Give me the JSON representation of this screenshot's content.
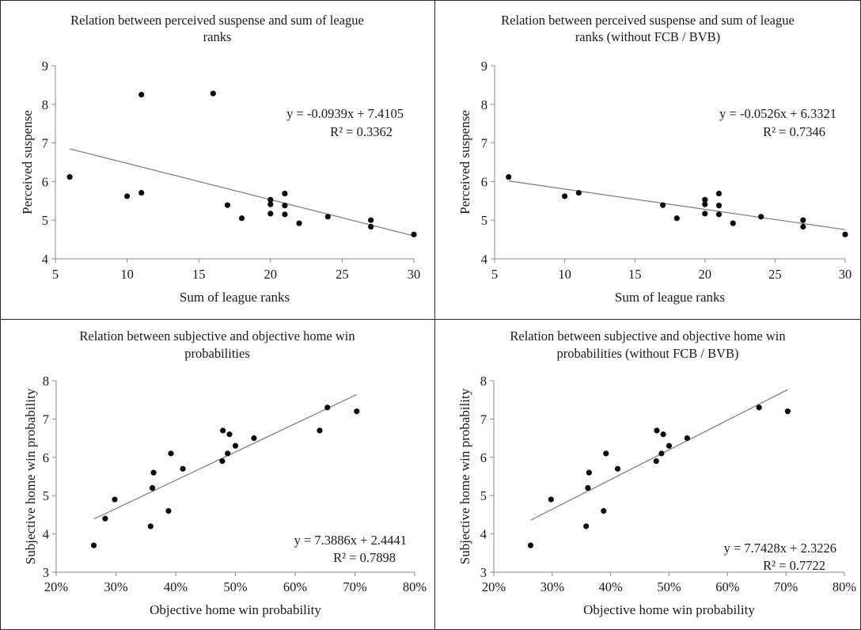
{
  "chart_data": [
    {
      "type": "scatter",
      "title_lines": [
        "Relation between perceived suspense and sum of league",
        "ranks"
      ],
      "xlabel": "Sum of league ranks",
      "ylabel": "Perceived suspense",
      "xlim": [
        5,
        30
      ],
      "ylim": [
        4,
        9
      ],
      "xticks": [
        5,
        10,
        15,
        20,
        25,
        30
      ],
      "yticks": [
        4,
        5,
        6,
        7,
        8,
        9
      ],
      "xtick_labels": [
        "5",
        "10",
        "15",
        "20",
        "25",
        "30"
      ],
      "ytick_labels": [
        "4",
        "5",
        "6",
        "7",
        "8",
        "9"
      ],
      "points": [
        {
          "x": 6,
          "y": 6.12
        },
        {
          "x": 10,
          "y": 5.62
        },
        {
          "x": 11,
          "y": 5.71
        },
        {
          "x": 11,
          "y": 8.25
        },
        {
          "x": 16,
          "y": 8.28
        },
        {
          "x": 17,
          "y": 5.39
        },
        {
          "x": 18,
          "y": 5.05
        },
        {
          "x": 20,
          "y": 5.53
        },
        {
          "x": 20,
          "y": 5.41
        },
        {
          "x": 20,
          "y": 5.17
        },
        {
          "x": 21,
          "y": 5.69
        },
        {
          "x": 21,
          "y": 5.38
        },
        {
          "x": 21,
          "y": 5.15
        },
        {
          "x": 22,
          "y": 4.92
        },
        {
          "x": 24,
          "y": 5.09
        },
        {
          "x": 27,
          "y": 5.0
        },
        {
          "x": 27,
          "y": 4.83
        },
        {
          "x": 30,
          "y": 4.63
        }
      ],
      "trendline": {
        "slope": -0.0939,
        "intercept": 7.4105,
        "x_range": [
          6,
          30
        ]
      },
      "equation": "y = -0.0939x + 7.4105",
      "r2": "R² = 0.3362"
    },
    {
      "type": "scatter",
      "title_lines": [
        "Relation between perceived suspense and sum of league",
        "ranks  (without FCB / BVB)"
      ],
      "xlabel": "Sum of league ranks",
      "ylabel": "Perceived suspense",
      "xlim": [
        5,
        30
      ],
      "ylim": [
        4,
        9
      ],
      "xticks": [
        5,
        10,
        15,
        20,
        25,
        30
      ],
      "yticks": [
        4,
        5,
        6,
        7,
        8,
        9
      ],
      "xtick_labels": [
        "5",
        "10",
        "15",
        "20",
        "25",
        "30"
      ],
      "ytick_labels": [
        "4",
        "5",
        "6",
        "7",
        "8",
        "9"
      ],
      "points": [
        {
          "x": 6,
          "y": 6.12
        },
        {
          "x": 10,
          "y": 5.62
        },
        {
          "x": 11,
          "y": 5.71
        },
        {
          "x": 17,
          "y": 5.39
        },
        {
          "x": 18,
          "y": 5.05
        },
        {
          "x": 20,
          "y": 5.53
        },
        {
          "x": 20,
          "y": 5.41
        },
        {
          "x": 20,
          "y": 5.17
        },
        {
          "x": 21,
          "y": 5.69
        },
        {
          "x": 21,
          "y": 5.38
        },
        {
          "x": 21,
          "y": 5.15
        },
        {
          "x": 22,
          "y": 4.92
        },
        {
          "x": 24,
          "y": 5.09
        },
        {
          "x": 27,
          "y": 5.0
        },
        {
          "x": 27,
          "y": 4.83
        },
        {
          "x": 30,
          "y": 4.63
        }
      ],
      "trendline": {
        "slope": -0.0526,
        "intercept": 6.3321,
        "x_range": [
          6,
          30
        ]
      },
      "equation": "y = -0.0526x + 6.3321",
      "r2": "R² = 0.7346"
    },
    {
      "type": "scatter",
      "title_lines": [
        "Relation between subjective and objective home win",
        "probabilities"
      ],
      "xlabel": "Objective home win probability",
      "ylabel": "Subjective home win probability",
      "xlim": [
        0.2,
        0.8
      ],
      "ylim": [
        3,
        8
      ],
      "xticks": [
        0.2,
        0.3,
        0.4,
        0.5,
        0.6,
        0.7,
        0.8
      ],
      "yticks": [
        3,
        4,
        5,
        6,
        7,
        8
      ],
      "xtick_labels": [
        "20%",
        "30%",
        "40%",
        "50%",
        "60%",
        "70%",
        "80%"
      ],
      "ytick_labels": [
        "3",
        "4",
        "5",
        "6",
        "7",
        "8"
      ],
      "points": [
        {
          "x": 0.263,
          "y": 3.7
        },
        {
          "x": 0.282,
          "y": 4.4
        },
        {
          "x": 0.298,
          "y": 4.9
        },
        {
          "x": 0.358,
          "y": 4.2
        },
        {
          "x": 0.361,
          "y": 5.2
        },
        {
          "x": 0.363,
          "y": 5.6
        },
        {
          "x": 0.388,
          "y": 4.6
        },
        {
          "x": 0.392,
          "y": 6.1
        },
        {
          "x": 0.412,
          "y": 5.7
        },
        {
          "x": 0.478,
          "y": 5.9
        },
        {
          "x": 0.479,
          "y": 6.7
        },
        {
          "x": 0.487,
          "y": 6.1
        },
        {
          "x": 0.49,
          "y": 6.6
        },
        {
          "x": 0.5,
          "y": 6.3
        },
        {
          "x": 0.531,
          "y": 6.5
        },
        {
          "x": 0.641,
          "y": 6.7
        },
        {
          "x": 0.654,
          "y": 7.3
        },
        {
          "x": 0.703,
          "y": 7.2
        }
      ],
      "trendline": {
        "slope": 7.3886,
        "intercept": 2.4441,
        "x_range": [
          0.263,
          0.703
        ]
      },
      "equation": "y = 7.3886x + 2.4441",
      "r2": "R² = 0.7898"
    },
    {
      "type": "scatter",
      "title_lines": [
        "Relation between subjective and objective home win",
        "probabilities  (without FCB / BVB)"
      ],
      "xlabel": "Objective home win probability",
      "ylabel": "Subjective home win probability",
      "xlim": [
        0.2,
        0.8
      ],
      "ylim": [
        3,
        8
      ],
      "xticks": [
        0.2,
        0.3,
        0.4,
        0.5,
        0.6,
        0.7,
        0.8
      ],
      "yticks": [
        3,
        4,
        5,
        6,
        7,
        8
      ],
      "xtick_labels": [
        "20%",
        "30%",
        "40%",
        "50%",
        "60%",
        "70%",
        "80%"
      ],
      "ytick_labels": [
        "3",
        "4",
        "5",
        "6",
        "7",
        "8"
      ],
      "points": [
        {
          "x": 0.263,
          "y": 3.7
        },
        {
          "x": 0.298,
          "y": 4.9
        },
        {
          "x": 0.358,
          "y": 4.2
        },
        {
          "x": 0.361,
          "y": 5.2
        },
        {
          "x": 0.363,
          "y": 5.6
        },
        {
          "x": 0.388,
          "y": 4.6
        },
        {
          "x": 0.392,
          "y": 6.1
        },
        {
          "x": 0.412,
          "y": 5.7
        },
        {
          "x": 0.478,
          "y": 5.9
        },
        {
          "x": 0.479,
          "y": 6.7
        },
        {
          "x": 0.487,
          "y": 6.1
        },
        {
          "x": 0.49,
          "y": 6.6
        },
        {
          "x": 0.5,
          "y": 6.3
        },
        {
          "x": 0.531,
          "y": 6.5
        },
        {
          "x": 0.654,
          "y": 7.3
        },
        {
          "x": 0.703,
          "y": 7.2
        }
      ],
      "trendline": {
        "slope": 7.7428,
        "intercept": 2.3226,
        "x_range": [
          0.263,
          0.703
        ]
      },
      "equation": "y = 7.7428x + 2.3226",
      "r2": "R² = 0.7722"
    }
  ]
}
